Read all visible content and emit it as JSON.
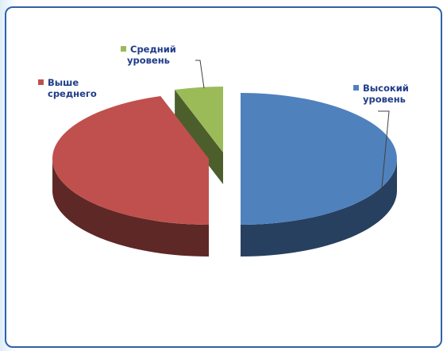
{
  "chart_data": {
    "type": "pie",
    "title": "",
    "slices": [
      {
        "label_lines": [
          "Высокий",
          "уровень"
        ],
        "value": 50,
        "color": "#4f81bd",
        "side_color": "#27405f"
      },
      {
        "label_lines": [
          "Выше",
          "среднего"
        ],
        "value": 45,
        "color": "#c0504d",
        "side_color": "#5e2826"
      },
      {
        "label_lines": [
          "Средний",
          "уровень"
        ],
        "value": 5,
        "color": "#9bbb59",
        "side_color": "#4c5e2c"
      }
    ],
    "legend": "callout labels with colored square markers",
    "label_color": "#1f3c88",
    "border_color": "#2f62a8"
  }
}
